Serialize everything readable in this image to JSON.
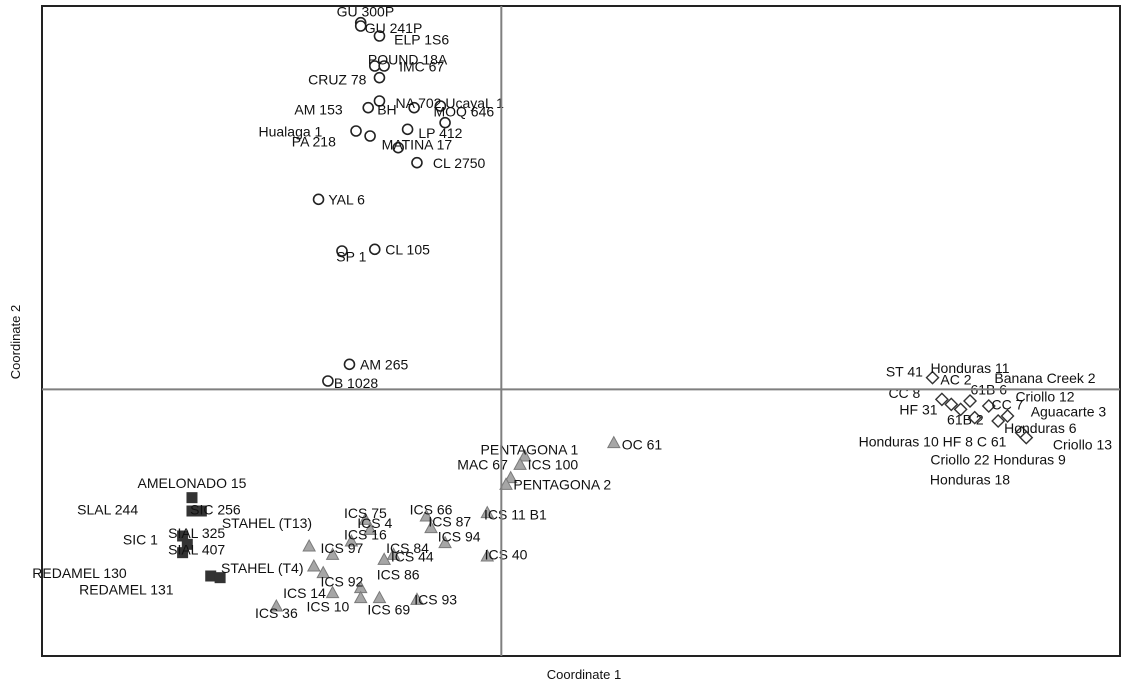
{
  "chart_data": {
    "type": "scatter",
    "title": "",
    "xlabel": "Coordinate 1",
    "ylabel": "Coordinate 2",
    "xlim": [
      -4.9,
      6.6
    ],
    "ylim": [
      -1.6,
      2.3
    ],
    "grid": false,
    "reference_lines": {
      "x": 0,
      "y": 0
    },
    "colors": {
      "circle_stroke": "#222222",
      "triangle_fill": "#a6a6a6",
      "triangle_stroke": "#7a7a7a",
      "square_fill": "#333333",
      "diamond_stroke": "#333333",
      "axis_line": "#7f7f7f",
      "frame": "#222222"
    },
    "series": [
      {
        "marker": "circle",
        "points": [
          {
            "x": -1.5,
            "y": 2.2,
            "label": "GU 300P"
          },
          {
            "x": -1.5,
            "y": 2.18,
            "label": "GU 241P"
          },
          {
            "x": -1.3,
            "y": 2.12,
            "label": "ELP 1S6"
          },
          {
            "x": -1.35,
            "y": 1.94,
            "label": "POUND 18A"
          },
          {
            "x": -1.25,
            "y": 1.94,
            "label": "IMC 67"
          },
          {
            "x": -1.3,
            "y": 1.87,
            "label": "CRUZ 78"
          },
          {
            "x": -1.3,
            "y": 1.73,
            "label": "NA 702"
          },
          {
            "x": -1.42,
            "y": 1.69,
            "label": "AM 153"
          },
          {
            "x": -0.93,
            "y": 1.69,
            "label": "BH"
          },
          {
            "x": -0.65,
            "y": 1.7,
            "label": "MOQ 646"
          },
          {
            "x": -1.55,
            "y": 1.55,
            "label": "Hualaga 1"
          },
          {
            "x": -1.0,
            "y": 1.56,
            "label": "LP 412"
          },
          {
            "x": -1.4,
            "y": 1.52,
            "label": "PA 218"
          },
          {
            "x": -1.1,
            "y": 1.45,
            "label": "MATINA 17"
          },
          {
            "x": -0.9,
            "y": 1.36,
            "label": "CL 2750"
          },
          {
            "x": -1.95,
            "y": 1.14,
            "label": "YAL 6"
          },
          {
            "x": -1.7,
            "y": 0.83,
            "label": "SP 1"
          },
          {
            "x": -1.35,
            "y": 0.84,
            "label": "CL 105"
          },
          {
            "x": -1.62,
            "y": 0.15,
            "label": "AM 265"
          },
          {
            "x": -1.85,
            "y": 0.05,
            "label": "B 1028"
          },
          {
            "x": -0.6,
            "y": 1.6,
            "label": "Ucayal 1"
          }
        ]
      },
      {
        "marker": "triangle",
        "points": [
          {
            "x": 1.2,
            "y": -0.32,
            "label": "OC 61"
          },
          {
            "x": 0.25,
            "y": -0.4,
            "label": "PENTAGONA 1"
          },
          {
            "x": 0.2,
            "y": -0.45,
            "label": "ICS 100"
          },
          {
            "x": 0.1,
            "y": -0.53,
            "label": "MAC 67"
          },
          {
            "x": 0.05,
            "y": -0.57,
            "label": "PENTAGONA 2"
          },
          {
            "x": -0.8,
            "y": -0.76,
            "label": "ICS 66"
          },
          {
            "x": -1.45,
            "y": -0.78,
            "label": "ICS 75"
          },
          {
            "x": -0.15,
            "y": -0.74,
            "label": "ICS 11 B1"
          },
          {
            "x": -0.75,
            "y": -0.83,
            "label": "ICS 87"
          },
          {
            "x": -1.4,
            "y": -0.84,
            "label": "ICS 4"
          },
          {
            "x": -1.6,
            "y": -0.91,
            "label": "ICS 16"
          },
          {
            "x": -0.6,
            "y": -0.92,
            "label": "ICS 94"
          },
          {
            "x": -2.05,
            "y": -0.94,
            "label": "STAHEL (T13)"
          },
          {
            "x": -1.15,
            "y": -0.99,
            "label": "ICS 84"
          },
          {
            "x": -1.25,
            "y": -1.02,
            "label": "ICS 44"
          },
          {
            "x": -1.8,
            "y": -0.99,
            "label": "ICS 97"
          },
          {
            "x": -0.15,
            "y": -1.0,
            "label": "ICS 40"
          },
          {
            "x": -2.0,
            "y": -1.06,
            "label": "STAHEL (T4)"
          },
          {
            "x": -1.9,
            "y": -1.1,
            "label": "ICS 86"
          },
          {
            "x": -1.5,
            "y": -1.19,
            "label": "ICS 92"
          },
          {
            "x": -1.8,
            "y": -1.22,
            "label": "ICS 14"
          },
          {
            "x": -1.5,
            "y": -1.25,
            "label": "ICS 10"
          },
          {
            "x": -1.3,
            "y": -1.25,
            "label": "ICS 69"
          },
          {
            "x": -0.9,
            "y": -1.26,
            "label": "ICS 93"
          },
          {
            "x": -2.4,
            "y": -1.3,
            "label": "ICS 36"
          }
        ]
      },
      {
        "marker": "square",
        "points": [
          {
            "x": -3.3,
            "y": -0.65,
            "label": "AMELONADO 15"
          },
          {
            "x": -3.3,
            "y": -0.73,
            "label": "SLAL 244"
          },
          {
            "x": -3.2,
            "y": -0.73,
            "label": "SIC 256"
          },
          {
            "x": -3.4,
            "y": -0.88,
            "label": "SIAL 325"
          },
          {
            "x": -3.35,
            "y": -0.93,
            "label": "SIC 1"
          },
          {
            "x": -3.4,
            "y": -0.98,
            "label": "SIAL 407"
          },
          {
            "x": -3.1,
            "y": -1.12,
            "label": "REDAMEL 130"
          },
          {
            "x": -3.0,
            "y": -1.13,
            "label": "REDAMEL 131"
          }
        ]
      },
      {
        "marker": "diamond",
        "points": [
          {
            "x": 4.6,
            "y": 0.07,
            "label": "ST 41"
          },
          {
            "x": 4.7,
            "y": -0.06,
            "label": "CC 8"
          },
          {
            "x": 5.0,
            "y": -0.07,
            "label": "AC 2"
          },
          {
            "x": 4.8,
            "y": -0.09,
            "label": "Honduras 11"
          },
          {
            "x": 4.9,
            "y": -0.12,
            "label": "HF 31"
          },
          {
            "x": 5.2,
            "y": -0.1,
            "label": "61B 6"
          },
          {
            "x": 5.4,
            "y": -0.16,
            "label": "CC 7"
          },
          {
            "x": 5.3,
            "y": -0.19,
            "label": "61B 2"
          },
          {
            "x": 5.05,
            "y": -0.17,
            "label": "Honduras 10"
          },
          {
            "x": 5.55,
            "y": -0.26,
            "label": "C 61"
          },
          {
            "x": 5.6,
            "y": -0.29,
            "label": "Honduras 6"
          }
        ]
      }
    ],
    "text_labels": [
      {
        "text": "GU 300P",
        "x": -1.45,
        "y": 2.26
      },
      {
        "text": "GU 241P",
        "x": -1.15,
        "y": 2.16
      },
      {
        "text": "ELP 1S6",
        "x": -0.85,
        "y": 2.09
      },
      {
        "text": "POUND 18A",
        "x": -1.0,
        "y": 1.97
      },
      {
        "text": "IMC 67",
        "x": -0.85,
        "y": 1.93
      },
      {
        "text": "CRUZ 78",
        "x": -1.75,
        "y": 1.85
      },
      {
        "text": "NA 702 UcayaL 1",
        "x": -0.55,
        "y": 1.71
      },
      {
        "text": "AM 153",
        "x": -1.95,
        "y": 1.67
      },
      {
        "text": "BH",
        "x": -1.22,
        "y": 1.67
      },
      {
        "text": "MOQ 646",
        "x": -0.4,
        "y": 1.66
      },
      {
        "text": "Hualaga 1",
        "x": -2.25,
        "y": 1.54
      },
      {
        "text": "LP 412",
        "x": -0.65,
        "y": 1.53
      },
      {
        "text": "PA 218",
        "x": -2.0,
        "y": 1.48
      },
      {
        "text": "MATINA 17",
        "x": -0.9,
        "y": 1.46
      },
      {
        "text": "CL 2750",
        "x": -0.45,
        "y": 1.35
      },
      {
        "text": "YAL 6",
        "x": -1.65,
        "y": 1.13
      },
      {
        "text": "SP 1",
        "x": -1.6,
        "y": 0.79
      },
      {
        "text": "CL 105",
        "x": -1.0,
        "y": 0.83
      },
      {
        "text": "AM 265",
        "x": -1.25,
        "y": 0.14
      },
      {
        "text": "B 1028",
        "x": -1.55,
        "y": 0.03
      },
      {
        "text": "OC 61",
        "x": 1.5,
        "y": -0.34
      },
      {
        "text": "PENTAGONA 1",
        "x": 0.3,
        "y": -0.37
      },
      {
        "text": "ICS 100",
        "x": 0.55,
        "y": -0.46
      },
      {
        "text": "MAC 67",
        "x": -0.2,
        "y": -0.46
      },
      {
        "text": "PENTAGONA 2",
        "x": 0.65,
        "y": -0.58
      },
      {
        "text": "ICS 66",
        "x": -0.75,
        "y": -0.73
      },
      {
        "text": "ICS 75",
        "x": -1.45,
        "y": -0.75
      },
      {
        "text": "ICS 11 B1",
        "x": 0.15,
        "y": -0.76
      },
      {
        "text": "ICS 87",
        "x": -0.55,
        "y": -0.8
      },
      {
        "text": "ICS 4",
        "x": -1.35,
        "y": -0.81
      },
      {
        "text": "ICS 16",
        "x": -1.45,
        "y": -0.88
      },
      {
        "text": "ICS 94",
        "x": -0.45,
        "y": -0.89
      },
      {
        "text": "STAHEL (T13)",
        "x": -2.5,
        "y": -0.81
      },
      {
        "text": "ICS 84",
        "x": -1.0,
        "y": -0.96
      },
      {
        "text": "ICS 44",
        "x": -0.95,
        "y": -1.01
      },
      {
        "text": "ICS 97",
        "x": -1.7,
        "y": -0.96
      },
      {
        "text": "ICS 40",
        "x": 0.05,
        "y": -1.0
      },
      {
        "text": "STAHEL (T4)",
        "x": -2.55,
        "y": -1.08
      },
      {
        "text": "ICS 86",
        "x": -1.1,
        "y": -1.12
      },
      {
        "text": "ICS 92",
        "x": -1.7,
        "y": -1.16
      },
      {
        "text": "ICS 14",
        "x": -2.1,
        "y": -1.23
      },
      {
        "text": "ICS 10",
        "x": -1.85,
        "y": -1.31
      },
      {
        "text": "ICS 69",
        "x": -1.2,
        "y": -1.33
      },
      {
        "text": "ICS 93",
        "x": -0.7,
        "y": -1.27
      },
      {
        "text": "ICS 36",
        "x": -2.4,
        "y": -1.35
      },
      {
        "text": "AMELONADO 15",
        "x": -3.3,
        "y": -0.57
      },
      {
        "text": "SLAL 244",
        "x": -4.2,
        "y": -0.73
      },
      {
        "text": "SIC 256",
        "x": -3.05,
        "y": -0.73
      },
      {
        "text": "SIAL 325",
        "x": -3.25,
        "y": -0.87
      },
      {
        "text": "SIC 1",
        "x": -3.85,
        "y": -0.91
      },
      {
        "text": "SIAL 407",
        "x": -3.25,
        "y": -0.97
      },
      {
        "text": "REDAMEL 130",
        "x": -4.5,
        "y": -1.11
      },
      {
        "text": "REDAMEL 131",
        "x": -4.0,
        "y": -1.21
      },
      {
        "text": "ST 41",
        "x": 4.3,
        "y": 0.1
      },
      {
        "text": "Honduras 11",
        "x": 5.0,
        "y": 0.12
      },
      {
        "text": "AC 2",
        "x": 4.85,
        "y": 0.05
      },
      {
        "text": "Banana Creek 2",
        "x": 5.8,
        "y": 0.06
      },
      {
        "text": "CC 8",
        "x": 4.3,
        "y": -0.03
      },
      {
        "text": "61B 6",
        "x": 5.2,
        "y": -0.01
      },
      {
        "text": "CC 7",
        "x": 5.4,
        "y": -0.1
      },
      {
        "text": "Criollo 12",
        "x": 5.8,
        "y": -0.05
      },
      {
        "text": "HF 31",
        "x": 4.45,
        "y": -0.13
      },
      {
        "text": "61B 2",
        "x": 4.95,
        "y": -0.19
      },
      {
        "text": "Aguacarte 3",
        "x": 6.05,
        "y": -0.14
      },
      {
        "text": "Honduras 6",
        "x": 5.75,
        "y": -0.24
      },
      {
        "text": "Honduras 10 HF 8 C 61",
        "x": 4.6,
        "y": -0.32
      },
      {
        "text": "Criollo 13",
        "x": 6.2,
        "y": -0.34
      },
      {
        "text": "Criollo 22 Honduras 9",
        "x": 5.3,
        "y": -0.43
      },
      {
        "text": "Honduras 18",
        "x": 5.0,
        "y": -0.55
      }
    ]
  }
}
